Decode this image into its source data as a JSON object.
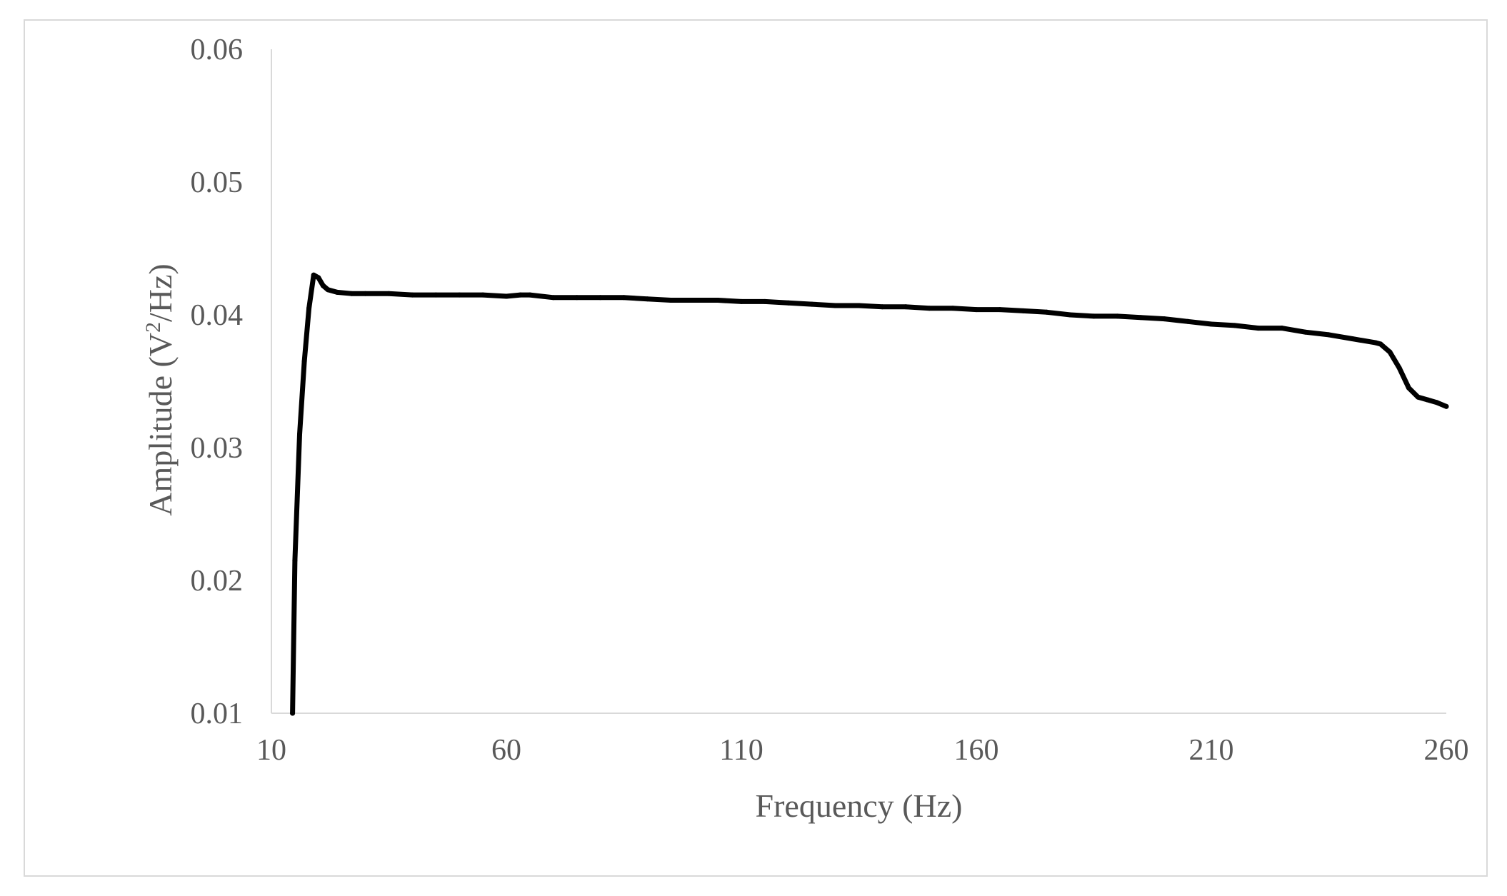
{
  "chart_data": {
    "type": "line",
    "xlabel": "Frequency (Hz)",
    "ylabel_parts": {
      "before": "Amplitude (V",
      "superscript": "2",
      "after": "/Hz)"
    },
    "xlim": [
      10,
      260
    ],
    "ylim": [
      0.01,
      0.06
    ],
    "x_ticks": [
      "10",
      "60",
      "110",
      "160",
      "210",
      "260"
    ],
    "y_ticks": [
      "0.01",
      "0.02",
      "0.03",
      "0.04",
      "0.05",
      "0.06"
    ],
    "grid": false,
    "legend": "none",
    "line_color": "#000000",
    "series": [
      {
        "x": [
          14.5,
          15,
          16,
          17,
          18,
          19,
          20,
          21,
          22,
          24,
          27,
          30,
          35,
          40,
          45,
          50,
          55,
          60,
          63,
          65,
          70,
          75,
          80,
          85,
          90,
          95,
          100,
          105,
          110,
          115,
          120,
          125,
          130,
          135,
          140,
          145,
          150,
          155,
          160,
          165,
          170,
          175,
          180,
          185,
          190,
          195,
          200,
          205,
          210,
          215,
          220,
          225,
          230,
          235,
          240,
          245,
          246,
          248,
          250,
          252,
          254,
          256,
          258,
          260
        ],
        "y": [
          0.01,
          0.0215,
          0.031,
          0.0365,
          0.0405,
          0.043,
          0.0428,
          0.0422,
          0.0419,
          0.0417,
          0.0416,
          0.0416,
          0.0416,
          0.0415,
          0.0415,
          0.0415,
          0.0415,
          0.0414,
          0.0415,
          0.0415,
          0.0413,
          0.0413,
          0.0413,
          0.0413,
          0.0412,
          0.0411,
          0.0411,
          0.0411,
          0.041,
          0.041,
          0.0409,
          0.0408,
          0.0407,
          0.0407,
          0.0406,
          0.0406,
          0.0405,
          0.0405,
          0.0404,
          0.0404,
          0.0403,
          0.0402,
          0.04,
          0.0399,
          0.0399,
          0.0398,
          0.0397,
          0.0395,
          0.0393,
          0.0392,
          0.039,
          0.039,
          0.0387,
          0.0385,
          0.0382,
          0.0379,
          0.0378,
          0.0372,
          0.036,
          0.0345,
          0.0338,
          0.0336,
          0.0334,
          0.0331
        ]
      }
    ]
  }
}
